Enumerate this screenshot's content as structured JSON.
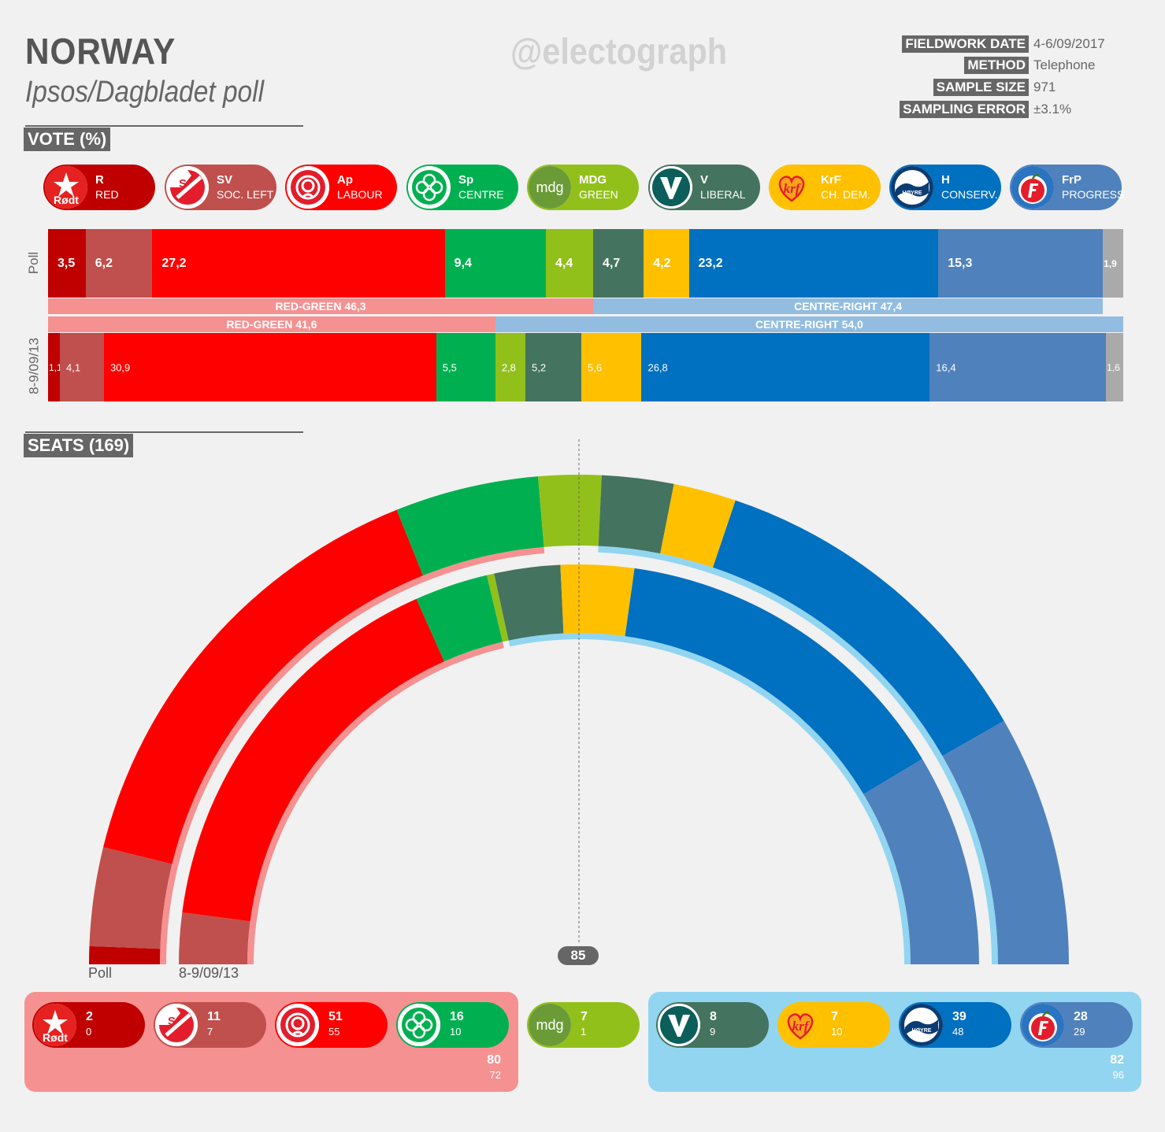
{
  "header": {
    "title": "NORWAY",
    "subtitle": "Ipsos/Dagbladet poll",
    "watermark": "@electograph",
    "info": [
      {
        "key": "FIELDWORK DATE",
        "value": "4-6/09/2017"
      },
      {
        "key": "METHOD",
        "value": "Telephone"
      },
      {
        "key": "SAMPLE SIZE",
        "value": "971"
      },
      {
        "key": "SAMPLING ERROR",
        "value": "±3.1%"
      }
    ]
  },
  "sections": {
    "vote": "VOTE (%)",
    "seats": "SEATS (169)"
  },
  "parties": [
    {
      "code": "R",
      "name": "RED",
      "color": "#c00000",
      "icon": "rodt-star-logo",
      "logo_text": "Rødt"
    },
    {
      "code": "SV",
      "name": "SOC. LEFT",
      "color": "#c0504d",
      "icon": "sv-flag-logo"
    },
    {
      "code": "Ap",
      "name": "LABOUR",
      "color": "#ff0000",
      "icon": "rose-logo"
    },
    {
      "code": "Sp",
      "name": "CENTRE",
      "color": "#00b050",
      "icon": "clover-logo"
    },
    {
      "code": "MDG",
      "name": "GREEN",
      "color": "#92c01b",
      "icon": "mdg-logo",
      "logo_text": "mdg"
    },
    {
      "code": "V",
      "name": "LIBERAL",
      "color": "#44735f",
      "icon": "venstre-v-logo"
    },
    {
      "code": "KrF",
      "name": "CH. DEM.",
      "color": "#ffc000",
      "icon": "krf-heart-logo"
    },
    {
      "code": "H",
      "name": "CONSERV.",
      "color": "#0070c0",
      "icon": "hoyre-logo",
      "logo_text": "HØYRE"
    },
    {
      "code": "FrP",
      "name": "PROGRESS",
      "color": "#4f81bd",
      "icon": "frp-apple-logo"
    }
  ],
  "chart_data": [
    {
      "type": "bar",
      "title": "VOTE (%)",
      "categories": [
        "R",
        "SV",
        "Ap",
        "Sp",
        "MDG",
        "V",
        "KrF",
        "H",
        "FrP",
        "Others"
      ],
      "series": [
        {
          "name": "Poll",
          "values": [
            3.5,
            6.2,
            27.2,
            9.4,
            4.4,
            4.7,
            4.2,
            23.2,
            15.3,
            1.9
          ],
          "labels": [
            "3,5",
            "6,2",
            "27,2",
            "9,4",
            "4,4",
            "4,7",
            "4,2",
            "23,2",
            "15,3",
            "1,9"
          ]
        },
        {
          "name": "8-9/09/13",
          "values": [
            1.1,
            4.1,
            30.9,
            5.5,
            2.8,
            5.2,
            5.6,
            26.8,
            16.4,
            1.6
          ],
          "labels": [
            "1,1",
            "4,1",
            "30,9",
            "5,5",
            "2,8",
            "5,2",
            "5,6",
            "26,8",
            "16,4",
            "1,6"
          ]
        }
      ],
      "others_color": "#aaaaaa",
      "blocs": {
        "poll": [
          {
            "label": "RED-GREEN 46,3",
            "from": 0,
            "to": 4,
            "color": "#f69191"
          },
          {
            "label": "CENTRE-RIGHT 47,4",
            "from": 5,
            "to": 8,
            "color": "#92bde0"
          }
        ],
        "previous": [
          {
            "label": "RED-GREEN 41,6",
            "from": 0,
            "to": 3,
            "color": "#f69191"
          },
          {
            "label": "CENTRE-RIGHT 54,0",
            "from": 4,
            "to": 9,
            "color": "#92bde0"
          }
        ]
      }
    },
    {
      "type": "pie",
      "title": "SEATS (169)",
      "categories": [
        "R",
        "SV",
        "Ap",
        "Sp",
        "MDG",
        "V",
        "KrF",
        "H",
        "FrP"
      ],
      "series": [
        {
          "name": "Poll",
          "values": [
            2,
            11,
            51,
            16,
            7,
            8,
            7,
            39,
            28
          ]
        },
        {
          "name": "8-9/09/13",
          "values": [
            0,
            7,
            55,
            10,
            1,
            9,
            10,
            48,
            29
          ]
        }
      ],
      "majority": "85",
      "ring_labels": {
        "outer": "Poll",
        "inner": "8-9/09/13"
      },
      "blocs": {
        "red_green": {
          "poll": "80",
          "previous": "72",
          "color": "#f69191"
        },
        "centre_right": {
          "poll": "82",
          "previous": "96",
          "color": "#92d5f0"
        }
      }
    }
  ]
}
